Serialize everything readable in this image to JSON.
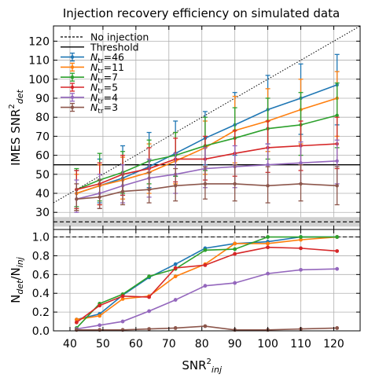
{
  "chart_data": {
    "type": "line",
    "title": "Injection recovery efficiency on simulated data",
    "x": [
      42,
      49,
      56,
      64,
      72,
      81,
      90,
      100,
      110,
      121
    ],
    "x_ticks": [
      40,
      50,
      60,
      70,
      80,
      90,
      100,
      110,
      120
    ],
    "x_tick_labels": [
      "40",
      "50",
      "60",
      "70",
      "80",
      "90",
      "100",
      "110",
      "120"
    ],
    "xlabel": {
      "base": "SNR",
      "sup": "2",
      "sub": "inj"
    },
    "xlim": [
      35,
      128
    ],
    "grid": true,
    "colors": {
      "N46": "#1f77b4",
      "N11": "#ff7f0e",
      "N7": "#2ca02c",
      "N5": "#d62728",
      "N4": "#9467bd",
      "N3": "#8c564b",
      "reference": "#000000",
      "band": "#d0d0d0"
    },
    "panels": [
      {
        "id": "top",
        "ylabel": {
          "base": "IMES SNR",
          "sup": "2",
          "sub": "det"
        },
        "ylim": [
          21,
          128
        ],
        "y_ticks": [
          30,
          40,
          50,
          60,
          70,
          80,
          90,
          100,
          110,
          120
        ],
        "y_tick_labels": [
          "30",
          "40",
          "50",
          "60",
          "70",
          "80",
          "90",
          "100",
          "110",
          "120"
        ],
        "reference_lines": {
          "threshold": 55,
          "no_injection": 25,
          "no_injection_band": [
            22.5,
            27.5
          ],
          "identity": "y = x"
        },
        "legend": {
          "placement": "top-left",
          "entries": [
            {
              "key": "no_injection",
              "label": "No injection",
              "style": "dashed"
            },
            {
              "key": "threshold",
              "label": "Threshold",
              "style": "solid"
            },
            {
              "key": "N46",
              "label_base": "N",
              "label_sub": "tr",
              "label_value": "=46"
            },
            {
              "key": "N11",
              "label_base": "N",
              "label_sub": "tr",
              "label_value": "=11"
            },
            {
              "key": "N7",
              "label_base": "N",
              "label_sub": "tr",
              "label_value": "=7"
            },
            {
              "key": "N5",
              "label_base": "N",
              "label_sub": "tr",
              "label_value": "=5"
            },
            {
              "key": "N4",
              "label_base": "N",
              "label_sub": "tr",
              "label_value": "=4"
            },
            {
              "key": "N3",
              "label_base": "N",
              "label_sub": "tr",
              "label_value": "=3"
            }
          ]
        },
        "series": [
          {
            "key": "N46",
            "name": "Ntr=46",
            "values": [
              40,
              44,
              48,
              54,
              61,
              69,
              76,
              84,
              90,
              97
            ],
            "err_lo": [
              31,
              35,
              39,
              43,
              49,
              55,
              60,
              66,
              71,
              76
            ],
            "err_hi": [
              52,
              58,
              65,
              72,
              78,
              83,
              93,
              102,
              108,
              113
            ]
          },
          {
            "key": "N11",
            "name": "Ntr=11",
            "values": [
              40,
              44,
              47,
              51,
              57,
              64,
              73,
              78,
              84,
              90
            ],
            "err_lo": [
              31,
              34,
              37,
              40,
              45,
              50,
              56,
              62,
              66,
              70
            ],
            "err_hi": [
              50,
              55,
              59,
              66,
              72,
              78,
              91,
              95,
              100,
              104
            ]
          },
          {
            "key": "N7",
            "name": "Ntr=7",
            "values": [
              42,
              47,
              51,
              57,
              60,
              65,
              69,
              74,
              76,
              81
            ],
            "err_lo": [
              33,
              36,
              40,
              45,
              49,
              52,
              54,
              58,
              60,
              64
            ],
            "err_hi": [
              53,
              61,
              62,
              68,
              72,
              80,
              85,
              90,
              93,
              98
            ]
          },
          {
            "key": "N5",
            "name": "Ntr=5",
            "values": [
              42,
              45,
              50,
              53,
              58,
              58,
              61,
              64,
              65,
              66
            ],
            "err_lo": [
              32,
              34,
              39,
              42,
              46,
              47,
              49,
              51,
              52,
              53
            ],
            "err_hi": [
              52,
              56,
              60,
              64,
              69,
              70,
              73,
              78,
              78,
              80
            ]
          },
          {
            "key": "N4",
            "name": "Ntr=4",
            "values": [
              37,
              40,
              44,
              48,
              50,
              53,
              54,
              55,
              56,
              57
            ],
            "err_lo": [
              30,
              32,
              35,
              38,
              40,
              43,
              43,
              44,
              45,
              45
            ],
            "err_hi": [
              47,
              50,
              55,
              58,
              61,
              64,
              65,
              66,
              67,
              68
            ]
          },
          {
            "key": "N3",
            "name": "Ntr=3",
            "values": [
              37,
              38,
              41,
              42,
              44,
              45,
              45,
              44,
              45,
              44
            ],
            "err_lo": [
              31,
              32,
              34,
              35,
              36,
              37,
              36,
              35,
              36,
              34
            ],
            "err_hi": [
              45,
              47,
              50,
              51,
              53,
              54,
              55,
              54,
              55,
              54
            ]
          }
        ]
      },
      {
        "id": "bottom",
        "ylabel": {
          "base": "N",
          "sub1": "det",
          "mid": "/N",
          "sub2": "inj"
        },
        "ylim": [
          0,
          1.08
        ],
        "y_ticks": [
          0,
          0.2,
          0.4,
          0.6,
          0.8,
          1.0
        ],
        "y_tick_labels": [
          "0.0",
          "0.2",
          "0.4",
          "0.6",
          "0.8",
          "1.0"
        ],
        "reference_lines": {
          "unity": 1.0
        },
        "series": [
          {
            "key": "N46",
            "name": "Ntr=46",
            "values": [
              0.12,
              0.18,
              0.38,
              0.57,
              0.71,
              0.88,
              0.93,
              0.95,
              1.0,
              1.0
            ]
          },
          {
            "key": "N11",
            "name": "Ntr=11",
            "values": [
              0.12,
              0.16,
              0.34,
              0.37,
              0.58,
              0.71,
              0.93,
              0.93,
              0.97,
              1.0
            ]
          },
          {
            "key": "N7",
            "name": "Ntr=7",
            "values": [
              0.03,
              0.29,
              0.39,
              0.58,
              0.66,
              0.86,
              0.87,
              1.0,
              1.0,
              1.0
            ]
          },
          {
            "key": "N5",
            "name": "Ntr=5",
            "values": [
              0.09,
              0.27,
              0.37,
              0.36,
              0.67,
              0.7,
              0.82,
              0.89,
              0.88,
              0.85
            ]
          },
          {
            "key": "N4",
            "name": "Ntr=4",
            "values": [
              0.02,
              0.06,
              0.1,
              0.21,
              0.33,
              0.48,
              0.51,
              0.61,
              0.65,
              0.66
            ]
          },
          {
            "key": "N3",
            "name": "Ntr=3",
            "values": [
              0.01,
              0.01,
              0.01,
              0.02,
              0.03,
              0.05,
              0.01,
              0.01,
              0.02,
              0.03
            ]
          }
        ]
      }
    ]
  }
}
